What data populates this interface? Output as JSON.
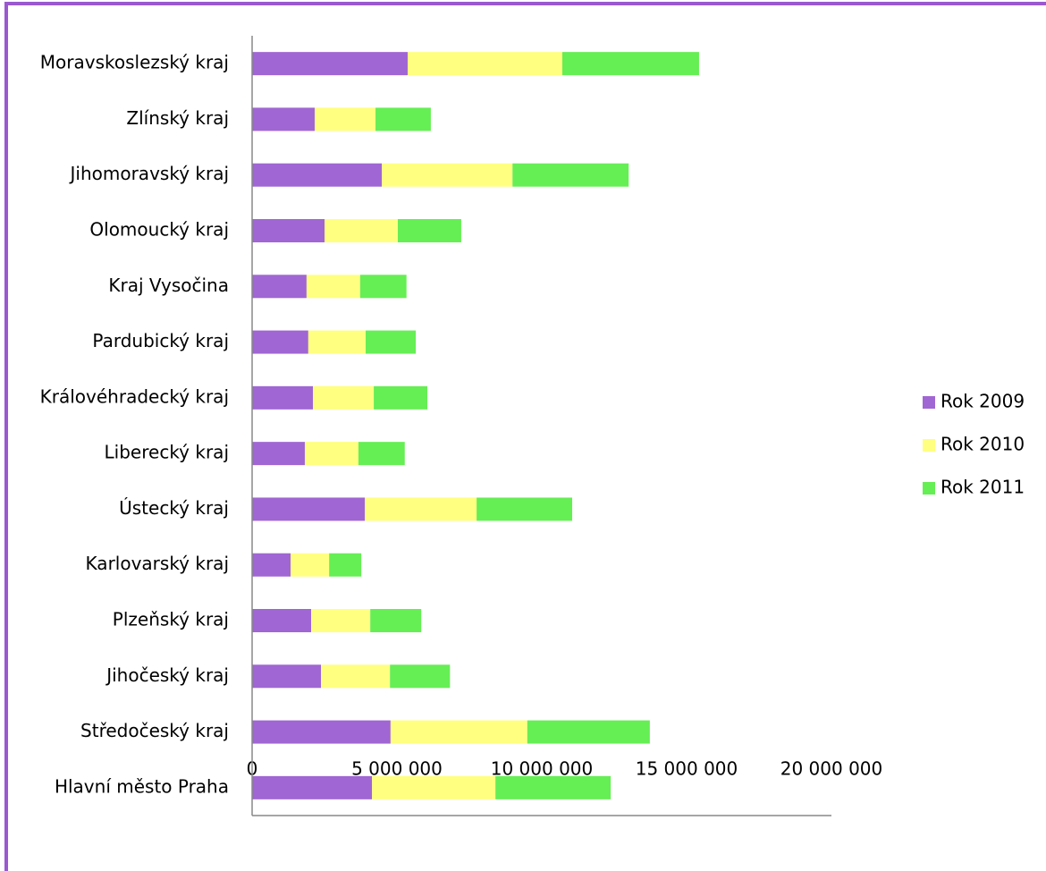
{
  "chart_data": {
    "type": "stacked-barh",
    "categories": [
      "Hlavní město Praha",
      "Středočeský kraj",
      "Jihočeský kraj",
      "Plzeňský kraj",
      "Karlovarský kraj",
      "Ústecký kraj",
      "Liberecký kraj",
      "Královéhradecký kraj",
      "Pardubický kraj",
      "Kraj Vysočina",
      "Olomoucký kraj",
      "Jihomoravský kraj",
      "Zlínský kraj",
      "Moravskoslezský kraj"
    ],
    "series": [
      {
        "name": "Rok 2009",
        "color": "#a066d3",
        "values": [
          4140000,
          4780000,
          2380000,
          2040000,
          1330000,
          3890000,
          1820000,
          2100000,
          1940000,
          1880000,
          2500000,
          4480000,
          2160000,
          5370000
        ]
      },
      {
        "name": "Rok 2010",
        "color": "#ffff80",
        "values": [
          4260000,
          4720000,
          2380000,
          2040000,
          1330000,
          3860000,
          1850000,
          2100000,
          1980000,
          1850000,
          2530000,
          4510000,
          2100000,
          5340000
        ]
      },
      {
        "name": "Rok 2011",
        "color": "#66ee55",
        "values": [
          3980000,
          4230000,
          2070000,
          1760000,
          1110000,
          3300000,
          1600000,
          1850000,
          1730000,
          1600000,
          2190000,
          4010000,
          1910000,
          4720000
        ]
      }
    ],
    "xlim": [
      0,
      20000000
    ],
    "xticks": [
      0,
      {
        "value": 5000000,
        "label": "5 000 000"
      },
      {
        "value": 10000000,
        "label": "10 000 000"
      },
      {
        "value": 15000000,
        "label": "15 000 000"
      },
      {
        "value": 20000000,
        "label": "20 000 000"
      }
    ],
    "legend": "right"
  }
}
